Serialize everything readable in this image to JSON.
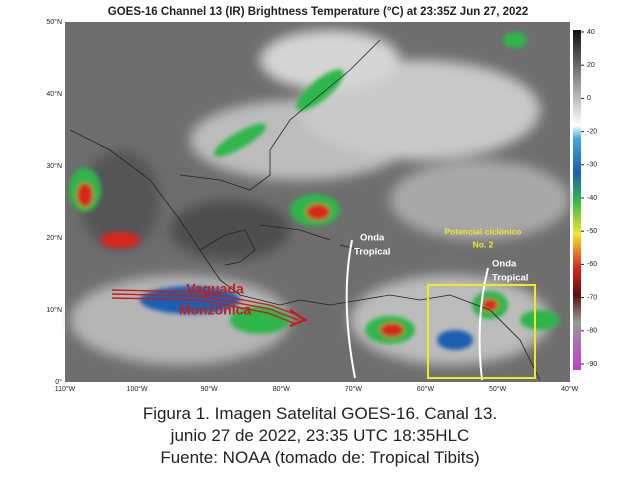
{
  "map": {
    "title": "GOES-16 Channel 13 (IR) Brightness Temperature (°C) at 23:35Z Jun 27, 2022",
    "lat_labels": [
      "50°N",
      "40°N",
      "30°N",
      "20°N",
      "10°N",
      "0°"
    ],
    "lon_labels": [
      "110°W",
      "100°W",
      "90°W",
      "80°W",
      "70°W",
      "60°W",
      "50°W",
      "40°W"
    ],
    "colorbar_ticks": [
      40,
      20,
      0,
      -20,
      -30,
      -40,
      -50,
      -60,
      -70,
      -80,
      -90
    ],
    "annotations": {
      "trough": [
        "Vaguada",
        "Monzónica"
      ],
      "wave_west": [
        "Onda",
        "Tropical"
      ],
      "wave_east": [
        "Onda",
        "Tropical"
      ],
      "cyclone": [
        "Potencial ciclónico",
        "No. 2"
      ]
    }
  },
  "caption": [
    "Figura 1. Imagen Satelital GOES-16. Canal 13.",
    "junio 27 de 2022, 23:35 UTC 18:35HLC",
    "Fuente: NOAA (tomado de: Tropical Tibits)"
  ]
}
